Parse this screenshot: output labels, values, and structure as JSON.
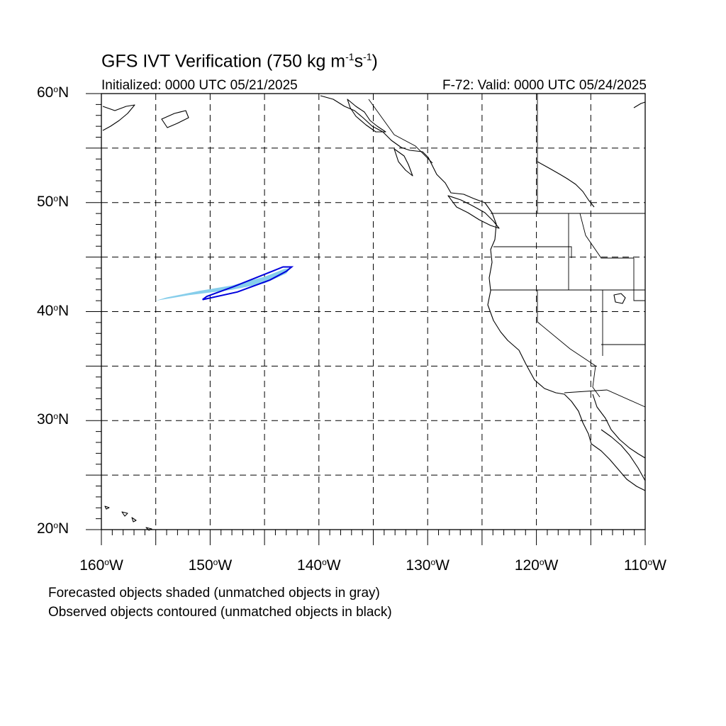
{
  "title": {
    "prefix": "GFS IVT Verification (750 kg m",
    "exp1": "-1",
    "mid": "s",
    "exp2": "-1",
    "suffix": ")"
  },
  "initialized": "Initialized: 0000 UTC 05/21/2025",
  "valid": "F-72: Valid: 0000 UTC 05/24/2025",
  "legend_notes": [
    "Forecasted objects shaded (unmatched objects in gray)",
    "Observed objects contoured (unmatched objects in black)"
  ],
  "map": {
    "projection": "cylindrical-equidistant",
    "lon_range": [
      -160,
      -110
    ],
    "lat_range": [
      20,
      60
    ],
    "gridline_style": "dashed",
    "lat_ticks": [
      {
        "lat": 60,
        "num": "60",
        "hemi": "N"
      },
      {
        "lat": 50,
        "num": "50",
        "hemi": "N"
      },
      {
        "lat": 40,
        "num": "40",
        "hemi": "N"
      },
      {
        "lat": 30,
        "num": "30",
        "hemi": "N"
      },
      {
        "lat": 20,
        "num": "20",
        "hemi": "N"
      }
    ],
    "lon_ticks": [
      {
        "lon": -160,
        "num": "160",
        "hemi": "W"
      },
      {
        "lon": -150,
        "num": "150",
        "hemi": "W"
      },
      {
        "lon": -140,
        "num": "140",
        "hemi": "W"
      },
      {
        "lon": -130,
        "num": "130",
        "hemi": "W"
      },
      {
        "lon": -120,
        "num": "120",
        "hemi": "W"
      },
      {
        "lon": -110,
        "num": "110",
        "hemi": "W"
      }
    ]
  },
  "objects": {
    "forecast": {
      "color": "#87ceeb",
      "matched": true,
      "outline_lonlat": [
        [
          -155,
          41.0
        ],
        [
          -152,
          41.5
        ],
        [
          -148,
          42.0
        ],
        [
          -145,
          42.6
        ],
        [
          -143,
          43.5
        ],
        [
          -142.6,
          44.0
        ],
        [
          -143.2,
          43.9
        ],
        [
          -145,
          43.2
        ],
        [
          -148,
          42.4
        ],
        [
          -151,
          41.9
        ],
        [
          -154,
          41.3
        ]
      ]
    },
    "observed": {
      "color": "#0000dd",
      "matched": true,
      "outline_lonlat": [
        [
          -150.7,
          41.1
        ],
        [
          -147.5,
          41.8
        ],
        [
          -144.5,
          42.9
        ],
        [
          -143.0,
          43.7
        ],
        [
          -142.5,
          44.1
        ],
        [
          -143.3,
          44.1
        ],
        [
          -144.8,
          43.5
        ],
        [
          -147.8,
          42.3
        ],
        [
          -150.3,
          41.4
        ]
      ]
    }
  }
}
